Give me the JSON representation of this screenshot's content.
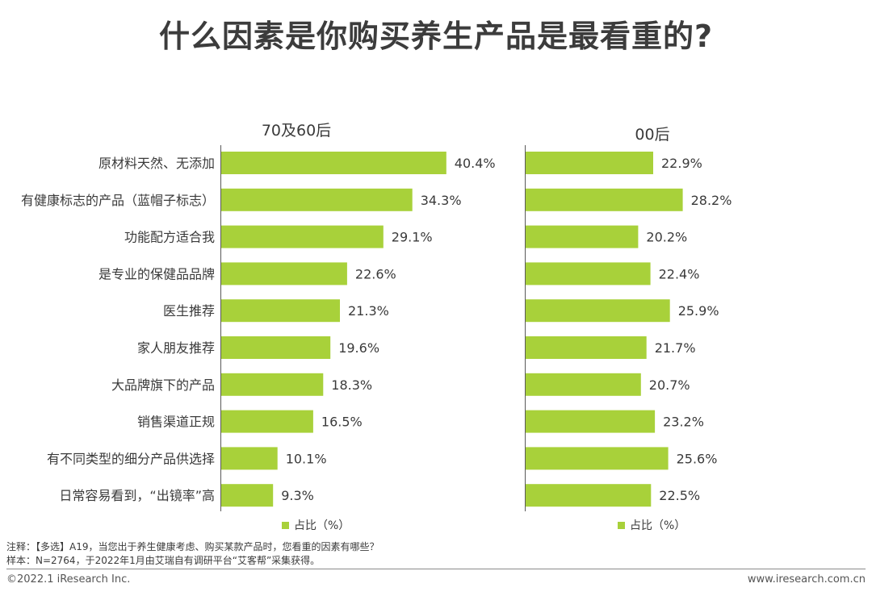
{
  "title": "什么因素是你购买养生产品是最看重的?",
  "colors": {
    "bar": "#a8d13a",
    "axis": "#595959"
  },
  "chart_data": [
    {
      "type": "bar",
      "orientation": "horizontal",
      "title": "70及60后",
      "categories": [
        "原材料天然、无添加",
        "有健康标志的产品（蓝帽子标志）",
        "功能配方适合我",
        "是专业的保健品品牌",
        "医生推荐",
        "家人朋友推荐",
        "大品牌旗下的产品",
        "销售渠道正规",
        "有不同类型的细分产品供选择",
        "日常容易看到，“出镜率”高"
      ],
      "values": [
        40.4,
        34.3,
        29.1,
        22.6,
        21.3,
        19.6,
        18.3,
        16.5,
        10.1,
        9.3
      ],
      "value_labels": [
        "40.4%",
        "34.3%",
        "29.1%",
        "22.6%",
        "21.3%",
        "19.6%",
        "18.3%",
        "16.5%",
        "10.1%",
        "9.3%"
      ],
      "legend": "占比（%）"
    },
    {
      "type": "bar",
      "orientation": "horizontal",
      "title": "00后",
      "values": [
        22.9,
        28.2,
        20.2,
        22.4,
        25.9,
        21.7,
        20.7,
        23.2,
        25.6,
        22.5
      ],
      "value_labels": [
        "22.9%",
        "28.2%",
        "20.2%",
        "22.4%",
        "25.9%",
        "21.7%",
        "20.7%",
        "23.2%",
        "25.6%",
        "22.5%"
      ],
      "legend": "占比（%）"
    }
  ],
  "notes": {
    "line1": "注释：【多选】A19，当您出于养生健康考虑、购买某款产品时，您看重的因素有哪些？",
    "line2": "样本：N=2764，于2022年1月由艾瑞自有调研平台“艾客帮”采集获得。"
  },
  "footer": {
    "left": "©2022.1 iResearch Inc.",
    "right": "www.iresearch.com.cn"
  }
}
